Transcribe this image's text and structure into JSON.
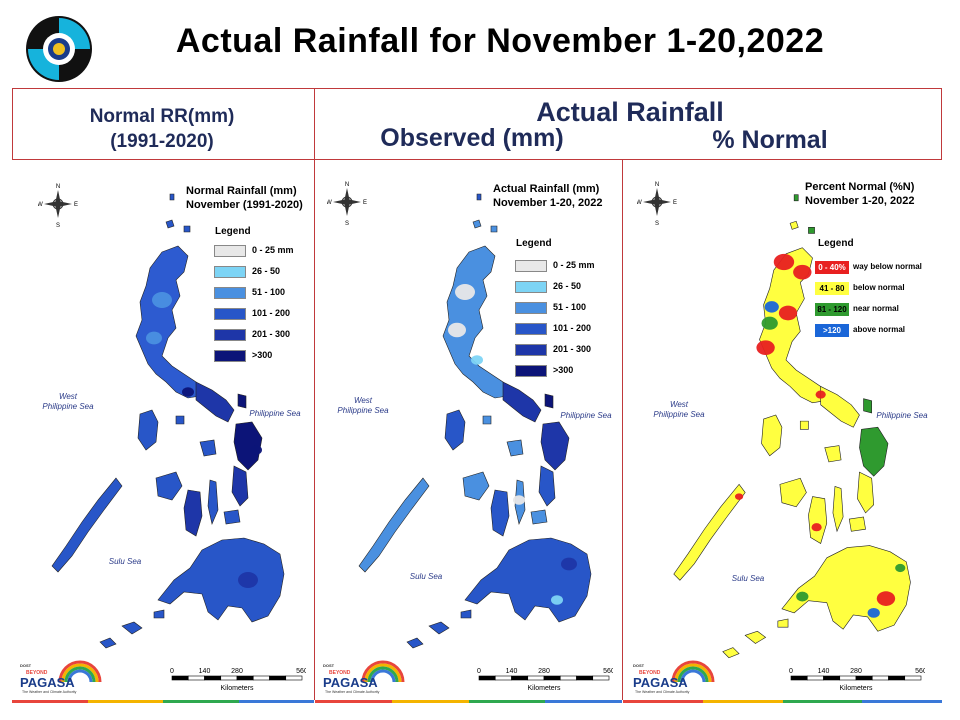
{
  "slide": {
    "title": "Actual Rainfall for November 1-20,2022"
  },
  "headers": {
    "normal_line1": "Normal RR(mm)",
    "normal_line2": "(1991-2020)",
    "actual": "Actual Rainfall",
    "observed": "Observed (mm)",
    "percent": "% Normal"
  },
  "panels": [
    {
      "title_line1": "Normal Rainfall (mm)",
      "title_line2": "November (1991-2020)",
      "legend_title": "Legend",
      "legend": [
        {
          "label": "0 - 25 mm",
          "color": "#e8e8e8"
        },
        {
          "label": "26 - 50",
          "color": "#7dd4f5"
        },
        {
          "label": "51 - 100",
          "color": "#4a90e0"
        },
        {
          "label": "101 - 200",
          "color": "#2856c8"
        },
        {
          "label": "201 - 300",
          "color": "#1e36a8"
        },
        {
          "label": ">300",
          "color": "#0c1478"
        }
      ],
      "sea_west_1": "West",
      "sea_west_2": "Philippine Sea",
      "sea_east": "Philippine Sea",
      "sea_south": "Sulu Sea"
    },
    {
      "title_line1": "Actual Rainfall (mm)",
      "title_line2": "November 1-20, 2022",
      "legend_title": "Legend",
      "legend": [
        {
          "label": "0 - 25 mm",
          "color": "#e8e8e8"
        },
        {
          "label": "26 - 50",
          "color": "#7dd4f5"
        },
        {
          "label": "51 - 100",
          "color": "#4a90e0"
        },
        {
          "label": "101 - 200",
          "color": "#2856c8"
        },
        {
          "label": "201 - 300",
          "color": "#1e36a8"
        },
        {
          "label": ">300",
          "color": "#0c1478"
        }
      ],
      "sea_west_1": "West",
      "sea_west_2": "Philippine Sea",
      "sea_east": "Philippine Sea",
      "sea_south": "Sulu Sea"
    },
    {
      "title_line1": "Percent Normal (%N)",
      "title_line2": "November 1-20, 2022",
      "legend_title": "Legend",
      "legend": [
        {
          "range": "0 - 40%",
          "label": "way below normal",
          "color": "#e82020",
          "text_color": "#ffffff"
        },
        {
          "range": "41 - 80",
          "label": "below normal",
          "color": "#ffff40",
          "text_color": "#000000"
        },
        {
          "range": "81 - 120",
          "label": "near normal",
          "color": "#2f9a2f",
          "text_color": "#000000"
        },
        {
          "range": ">120",
          "label": "above normal",
          "color": "#1a66d8",
          "text_color": "#ffffff"
        }
      ],
      "sea_west_1": "West",
      "sea_west_2": "Philippine Sea",
      "sea_east": "Philippine Sea",
      "sea_south": "Sulu Sea"
    }
  ],
  "scale": {
    "ticks": [
      "0",
      "140",
      "280",
      "560"
    ],
    "unit": "Kilometers"
  },
  "compass": {
    "n": "N",
    "s": "S",
    "e": "E",
    "w": "W"
  },
  "branding": {
    "dost": "DOST",
    "beyond": "BEYOND",
    "name": "PAGASA",
    "tagline": "The Weather and Climate Authority"
  },
  "colors": {
    "frame": "#c0393b",
    "header_text": "#1f2b59",
    "strip": [
      "#e8453c",
      "#f4b400",
      "#2fa84f",
      "#3a78d8"
    ]
  }
}
